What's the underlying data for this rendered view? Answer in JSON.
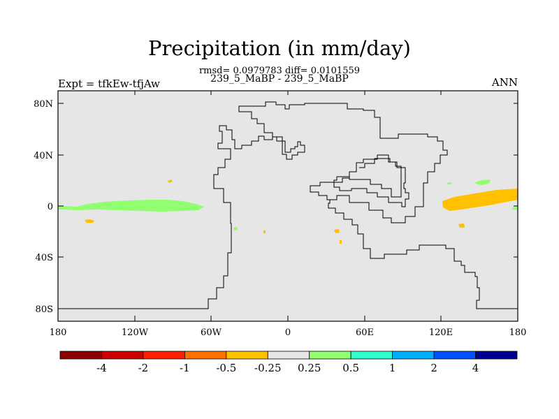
{
  "title": "Precipitation (in mm/day)",
  "stats": "rmsd= 0.0979783 diff= 0.0101559",
  "subtitle": "239_5_MaBP - 239_5_MaBP",
  "left_label": "Expt = tfkEw-tfjAw",
  "right_label": "ANN",
  "map": {
    "projection": "cylindrical-equidistant",
    "background_color": "#e6e6e6",
    "lon_range": [
      -180,
      180
    ],
    "lat_range": [
      -90,
      90
    ],
    "x_ticks": [
      "180",
      "120W",
      "60W",
      "0",
      "60E",
      "120E",
      "180"
    ],
    "y_ticks": [
      "80N",
      "40N",
      "0",
      "40S",
      "80S"
    ]
  },
  "colorbar": {
    "colors": [
      "#8b0000",
      "#cc0000",
      "#ff2000",
      "#ff7000",
      "#ffc000",
      "#e6e6e6",
      "#90ff70",
      "#30ffd0",
      "#00b0ff",
      "#0050ff",
      "#000090"
    ],
    "labels": [
      "-4",
      "-2",
      "-1",
      "-0.5",
      "-0.25",
      "0.25",
      "0.5",
      "1",
      "2",
      "4"
    ]
  }
}
